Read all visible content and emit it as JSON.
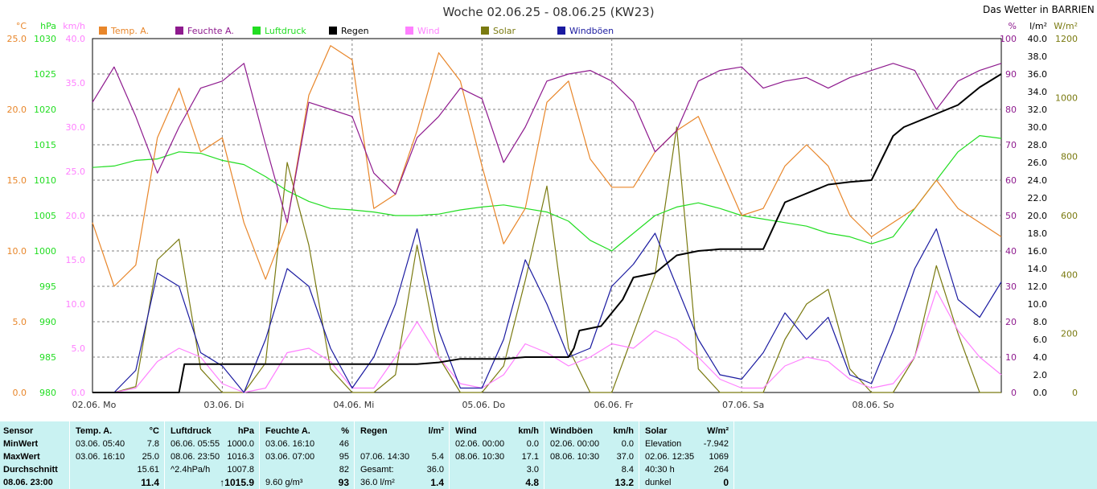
{
  "title": "Woche 02.06.25 - 08.06.25 (KW23)",
  "site": "Das Wetter in BARRIEN",
  "colors": {
    "temp": "#e8862a",
    "hum": "#8e1a8e",
    "press": "#22dd22",
    "rain": "#000000",
    "wind": "#ff80ff",
    "solar": "#7a7a10",
    "gust": "#1a1aa0",
    "grid": "#808080"
  },
  "legend": [
    {
      "key": "temp",
      "label": "Temp. A."
    },
    {
      "key": "hum",
      "label": "Feuchte A."
    },
    {
      "key": "press",
      "label": "Luftdruck"
    },
    {
      "key": "rain",
      "label": "Regen"
    },
    {
      "key": "wind",
      "label": "Wind"
    },
    {
      "key": "solar",
      "label": "Solar"
    },
    {
      "key": "gust",
      "label": "Windböen"
    }
  ],
  "axes": {
    "left": [
      {
        "key": "temp",
        "unit": "°C",
        "ticks": [
          "0.0",
          "5.0",
          "10.0",
          "15.0",
          "20.0",
          "25.0"
        ]
      },
      {
        "key": "press",
        "unit": "hPa",
        "ticks": [
          "980",
          "985",
          "990",
          "995",
          "1000",
          "1005",
          "1010",
          "1015",
          "1020",
          "1025",
          "1030"
        ]
      },
      {
        "key": "wind",
        "unit": "km/h",
        "ticks": [
          "0.0",
          "5.0",
          "10.0",
          "15.0",
          "20.0",
          "25.0",
          "30.0",
          "35.0",
          "40.0"
        ]
      }
    ],
    "right": [
      {
        "key": "hum",
        "unit": "%",
        "ticks": [
          "0",
          "10",
          "20",
          "30",
          "40",
          "50",
          "60",
          "70",
          "80",
          "90",
          "100"
        ]
      },
      {
        "key": "rain",
        "unit": "l/m²",
        "ticks": [
          "0.0",
          "2.0",
          "4.0",
          "6.0",
          "8.0",
          "10.0",
          "12.0",
          "14.0",
          "16.0",
          "18.0",
          "20.0",
          "22.0",
          "24.0",
          "26.0",
          "28.0",
          "30.0",
          "32.0",
          "34.0",
          "36.0",
          "38.0",
          "40.0"
        ]
      },
      {
        "key": "solar",
        "unit": "W/m²",
        "ticks": [
          "0",
          "200",
          "400",
          "600",
          "800",
          "1000",
          "1200"
        ]
      }
    ]
  },
  "chart_data": {
    "type": "line",
    "title": "Woche 02.06.25 - 08.06.25 (KW23)",
    "x_unit": "hours since 02.06. 00:00",
    "xlim": [
      0,
      168
    ],
    "day_labels": [
      "02.06. Mo",
      "03.06. Di",
      "04.06. Mi",
      "05.06. Do",
      "06.06. Fr",
      "07.06. Sa",
      "08.06. So"
    ],
    "series": [
      {
        "key": "temp",
        "name": "Temp. A.",
        "unit": "°C",
        "ylim": [
          0,
          25
        ],
        "x": [
          0,
          4,
          8,
          12,
          16,
          20,
          24,
          28,
          32,
          36,
          40,
          44,
          48,
          52,
          56,
          60,
          64,
          68,
          72,
          76,
          80,
          84,
          88,
          92,
          96,
          100,
          104,
          108,
          112,
          116,
          120,
          124,
          128,
          132,
          136,
          140,
          144,
          148,
          152,
          156,
          160,
          164,
          168
        ],
        "y": [
          12.0,
          7.5,
          9.0,
          18.0,
          21.5,
          17.0,
          18.0,
          12.0,
          8.0,
          12.0,
          21.0,
          24.5,
          23.5,
          13.0,
          14.0,
          18.5,
          24.0,
          22.0,
          16.0,
          10.5,
          13.0,
          20.5,
          22.0,
          16.5,
          14.5,
          14.5,
          17.0,
          18.5,
          19.5,
          16.0,
          12.5,
          13.0,
          16.0,
          17.5,
          16.0,
          12.5,
          11.0,
          12.0,
          13.0,
          15.0,
          13.0,
          12.0,
          11.0
        ]
      },
      {
        "key": "hum",
        "name": "Feuchte A.",
        "unit": "%",
        "ylim": [
          0,
          100
        ],
        "x": [
          0,
          4,
          8,
          12,
          16,
          20,
          24,
          28,
          32,
          36,
          40,
          44,
          48,
          52,
          56,
          60,
          64,
          68,
          72,
          76,
          80,
          84,
          88,
          92,
          96,
          100,
          104,
          108,
          112,
          116,
          120,
          124,
          128,
          132,
          136,
          140,
          144,
          148,
          152,
          156,
          160,
          164,
          168
        ],
        "y": [
          82.0,
          92.0,
          78.0,
          62.0,
          75.0,
          86.0,
          88.0,
          93.0,
          70.0,
          48.0,
          82.0,
          80.0,
          78.0,
          62.0,
          56.0,
          72.0,
          78.0,
          86.0,
          83.0,
          65.0,
          75.0,
          88.0,
          90.0,
          91.0,
          88.0,
          82.0,
          68.0,
          74.0,
          88.0,
          91.0,
          92.0,
          86.0,
          88.0,
          89.0,
          86.0,
          89.0,
          91.0,
          93.0,
          91.0,
          80.0,
          88.0,
          91.0,
          93.0
        ]
      },
      {
        "key": "press",
        "name": "Luftdruck",
        "unit": "hPa",
        "ylim": [
          980,
          1030
        ],
        "x": [
          0,
          4,
          8,
          12,
          16,
          20,
          24,
          28,
          32,
          36,
          40,
          44,
          48,
          52,
          56,
          60,
          64,
          68,
          72,
          76,
          80,
          84,
          88,
          92,
          96,
          100,
          104,
          108,
          112,
          116,
          120,
          124,
          128,
          132,
          136,
          140,
          144,
          148,
          152,
          156,
          160,
          164,
          168
        ],
        "y": [
          1011.8,
          1012.0,
          1012.8,
          1013.0,
          1014.0,
          1013.8,
          1012.8,
          1012.2,
          1010.5,
          1008.5,
          1007.0,
          1006.0,
          1005.8,
          1005.5,
          1005.0,
          1005.0,
          1005.2,
          1005.8,
          1006.2,
          1006.5,
          1006.0,
          1005.5,
          1004.2,
          1001.5,
          1000.0,
          1002.5,
          1005.0,
          1006.2,
          1006.8,
          1006.0,
          1005.0,
          1004.5,
          1004.0,
          1003.5,
          1002.5,
          1002.0,
          1001.0,
          1002.0,
          1006.0,
          1010.0,
          1014.0,
          1016.3,
          1015.9
        ]
      },
      {
        "key": "rain",
        "name": "Regen",
        "unit": "l/m²",
        "ylim": [
          0,
          40
        ],
        "x": [
          0,
          16,
          17,
          20,
          24,
          28,
          32,
          36,
          40,
          44,
          48,
          52,
          56,
          60,
          64,
          68,
          70,
          72,
          76,
          80,
          84,
          88,
          89,
          90,
          94,
          96,
          98,
          100,
          104,
          108,
          112,
          116,
          120,
          124,
          128,
          132,
          136,
          140,
          144,
          148,
          150,
          152,
          156,
          160,
          164,
          168
        ],
        "y": [
          0.0,
          0.0,
          3.2,
          3.2,
          3.2,
          3.2,
          3.2,
          3.2,
          3.2,
          3.2,
          3.2,
          3.2,
          3.2,
          3.2,
          3.4,
          3.8,
          3.8,
          3.8,
          3.8,
          4.0,
          4.0,
          4.0,
          5.0,
          7.0,
          7.5,
          9.0,
          10.5,
          13.0,
          13.5,
          15.5,
          16.0,
          16.2,
          16.2,
          16.2,
          21.5,
          22.5,
          23.5,
          23.8,
          24.0,
          29.0,
          30.0,
          30.5,
          31.5,
          32.5,
          34.5,
          36.0
        ]
      },
      {
        "key": "wind",
        "name": "Wind",
        "unit": "km/h",
        "ylim": [
          0,
          40
        ],
        "x": [
          0,
          4,
          8,
          12,
          16,
          20,
          24,
          28,
          32,
          36,
          40,
          44,
          48,
          52,
          56,
          60,
          64,
          68,
          72,
          76,
          80,
          84,
          88,
          92,
          96,
          100,
          104,
          108,
          112,
          116,
          120,
          124,
          128,
          132,
          136,
          140,
          144,
          148,
          152,
          156,
          160,
          164,
          168
        ],
        "y": [
          0.0,
          0.0,
          0.5,
          3.5,
          5.0,
          4.0,
          1.0,
          0.0,
          0.5,
          4.5,
          5.0,
          3.5,
          0.5,
          0.5,
          4.0,
          8.0,
          4.0,
          1.0,
          0.5,
          2.0,
          5.5,
          4.5,
          3.0,
          4.0,
          5.5,
          5.0,
          7.0,
          6.0,
          4.0,
          1.5,
          0.5,
          0.5,
          3.0,
          4.0,
          3.5,
          1.5,
          0.5,
          1.0,
          4.0,
          11.5,
          7.0,
          4.0,
          2.0
        ]
      },
      {
        "key": "solar",
        "name": "Solar",
        "unit": "W/m²",
        "ylim": [
          0,
          1200
        ],
        "x": [
          0,
          4,
          8,
          12,
          16,
          20,
          24,
          28,
          32,
          36,
          40,
          44,
          48,
          52,
          56,
          60,
          64,
          68,
          72,
          76,
          80,
          84,
          88,
          92,
          96,
          100,
          104,
          108,
          112,
          116,
          120,
          124,
          128,
          132,
          136,
          140,
          144,
          148,
          152,
          156,
          160,
          164,
          168
        ],
        "y": [
          0,
          0,
          20,
          450,
          520,
          80,
          0,
          0,
          100,
          780,
          500,
          80,
          0,
          0,
          60,
          500,
          120,
          0,
          0,
          90,
          380,
          700,
          150,
          0,
          0,
          200,
          400,
          900,
          80,
          0,
          0,
          0,
          180,
          300,
          350,
          80,
          0,
          0,
          120,
          430,
          200,
          0,
          0
        ]
      },
      {
        "key": "gust",
        "name": "Windböen",
        "unit": "km/h",
        "ylim": [
          0,
          40
        ],
        "x": [
          0,
          4,
          8,
          12,
          16,
          20,
          24,
          28,
          32,
          36,
          40,
          44,
          48,
          52,
          56,
          60,
          64,
          68,
          72,
          76,
          80,
          84,
          88,
          92,
          96,
          100,
          104,
          108,
          112,
          116,
          120,
          124,
          128,
          132,
          136,
          140,
          144,
          148,
          152,
          156,
          160,
          164,
          168
        ],
        "y": [
          0.0,
          0.0,
          2.5,
          13.5,
          12.0,
          4.5,
          3.0,
          0.0,
          6.0,
          14.0,
          12.0,
          5.0,
          0.5,
          4.0,
          10.0,
          18.5,
          7.0,
          0.5,
          0.5,
          6.0,
          15.0,
          10.0,
          4.0,
          5.0,
          12.0,
          14.5,
          18.0,
          12.0,
          6.0,
          2.0,
          1.5,
          4.5,
          9.0,
          6.0,
          8.5,
          2.0,
          1.0,
          7.0,
          14.0,
          18.5,
          10.5,
          8.5,
          12.5
        ]
      }
    ]
  },
  "stats": {
    "sensor": {
      "header": "Sensor",
      "rows": [
        "MinWert",
        "MaxWert",
        "Durchschnitt",
        "08.06. 23:00"
      ]
    },
    "panels": [
      {
        "key": "temp",
        "header": "Temp. A.",
        "unit": "°C",
        "rows": [
          [
            "03.06.  05:40",
            "7.8"
          ],
          [
            "03.06.  16:10",
            "25.0"
          ],
          [
            "",
            "15.61"
          ],
          [
            "",
            "11.4"
          ]
        ]
      },
      {
        "key": "press",
        "header": "Luftdruck",
        "unit": "hPa",
        "rows": [
          [
            "06.06.  05:55",
            "1000.0"
          ],
          [
            "08.06.  23:50",
            "1016.3"
          ],
          [
            "^2.4hPa/h",
            "1007.8"
          ],
          [
            "",
            "↑1015.9"
          ]
        ]
      },
      {
        "key": "hum",
        "header": "Feuchte A.",
        "unit": "%",
        "rows": [
          [
            "03.06.  16:10",
            "46"
          ],
          [
            "03.06.  07:00",
            "95"
          ],
          [
            "",
            "82"
          ],
          [
            "9.60 g/m³",
            "93"
          ]
        ]
      },
      {
        "key": "rain",
        "header": "Regen",
        "unit": "l/m²",
        "rows": [
          [
            "",
            ""
          ],
          [
            "07.06.  14:30",
            "5.4"
          ],
          [
            "Gesamt:",
            "36.0"
          ],
          [
            "36.0 l/m²",
            "1.4"
          ]
        ]
      },
      {
        "key": "wind",
        "header": "Wind",
        "unit": "km/h",
        "rows": [
          [
            "02.06.  00:00",
            "0.0"
          ],
          [
            "08.06.  10:30",
            "17.1"
          ],
          [
            "",
            "3.0"
          ],
          [
            "",
            "4.8"
          ]
        ]
      },
      {
        "key": "gust",
        "header": "Windböen",
        "unit": "km/h",
        "rows": [
          [
            "02.06.  00:00",
            "0.0"
          ],
          [
            "08.06.  10:30",
            "37.0"
          ],
          [
            "",
            "8.4"
          ],
          [
            "",
            "13.2"
          ]
        ]
      },
      {
        "key": "solar",
        "header": "Solar",
        "unit": "W/m²",
        "rows": [
          [
            "Elevation",
            "-7.942"
          ],
          [
            "02.06.  12:35",
            "1069"
          ],
          [
            "40:30 h",
            "264"
          ],
          [
            "dunkel",
            "0"
          ]
        ]
      }
    ]
  }
}
